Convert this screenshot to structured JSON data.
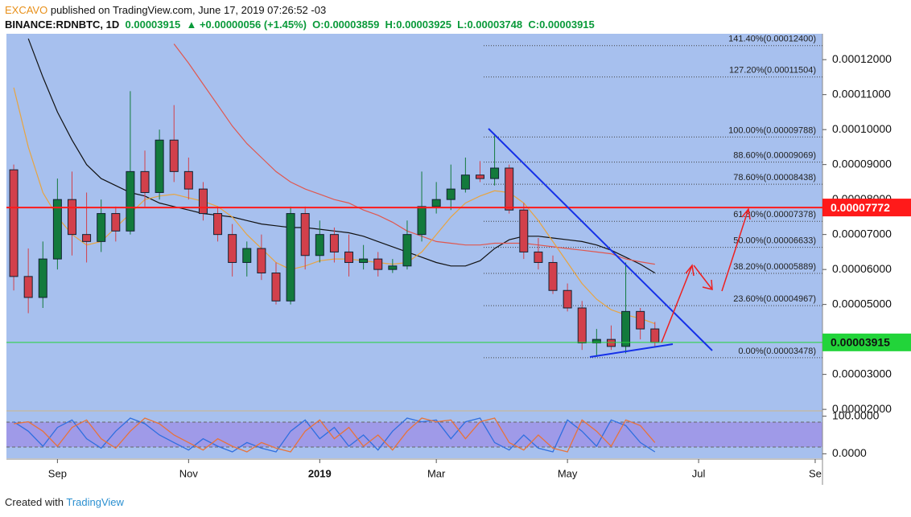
{
  "header": {
    "author": "EXCAVO",
    "published": "published on TradingView.com, June 17, 2019 07:26:52 -03",
    "symbol": "BINANCE:RDNBTC, 1D",
    "last": "0.00003915",
    "arrow": "▲",
    "change": "+0.00000056 (+1.45%)",
    "open": "O:0.00003859",
    "high": "H:0.00003925",
    "low": "L:0.00003748",
    "close": "C:0.00003915"
  },
  "footer": {
    "created": "Created with",
    "brand": "TradingView"
  },
  "chart_data": [
    {
      "type": "candlestick",
      "categories": [
        null,
        null,
        null,
        "Sep",
        null,
        null,
        null,
        null,
        null,
        null,
        null,
        null,
        "Nov",
        null,
        null,
        null,
        null,
        null,
        null,
        null,
        null,
        "2019",
        null,
        null,
        null,
        null,
        null,
        null,
        null,
        "Mar",
        null,
        null,
        null,
        null,
        null,
        null,
        null,
        null,
        "May",
        null,
        null,
        null,
        null,
        null,
        null,
        null,
        null,
        "Jul",
        null,
        null,
        null,
        null,
        null,
        null,
        null,
        "Se"
      ],
      "open": [
        8.85e-05,
        5.8e-05,
        5.2e-05,
        6.3e-05,
        8e-05,
        7e-05,
        6.8e-05,
        7.6e-05,
        7.1e-05,
        8.8e-05,
        8.2e-05,
        9.7e-05,
        8.8e-05,
        8.3e-05,
        7.6e-05,
        7e-05,
        6.2e-05,
        6.6e-05,
        5.9e-05,
        5.1e-05,
        7.6e-05,
        6.4e-05,
        7e-05,
        6.5e-05,
        6.2e-05,
        6.3e-05,
        6e-05,
        6.1e-05,
        7e-05,
        7.8e-05,
        8e-05,
        8.3e-05,
        8.7e-05,
        8.6e-05,
        8.9e-05,
        7.7e-05,
        6.5e-05,
        6.2e-05,
        5.4e-05,
        4.9e-05,
        3.9e-05,
        4e-05,
        3.8e-05,
        4.8e-05,
        4.3e-05,
        null,
        null,
        null,
        null,
        null,
        null,
        null,
        null,
        null,
        null,
        null
      ],
      "high": [
        9e-05,
        6.6e-05,
        6.8e-05,
        8.6e-05,
        8.8e-05,
        8.2e-05,
        8e-05,
        7.8e-05,
        0.000111,
        9.4e-05,
        0.0001,
        0.000107,
        9.2e-05,
        8.5e-05,
        7.8e-05,
        7.3e-05,
        6.8e-05,
        7e-05,
        6.2e-05,
        7.8e-05,
        7.8e-05,
        7.4e-05,
        7.2e-05,
        7e-05,
        6.7e-05,
        6.5e-05,
        6.3e-05,
        7.4e-05,
        8.8e-05,
        8.5e-05,
        9e-05,
        9.2e-05,
        9.1e-05,
        9.88e-05,
        9e-05,
        7.9e-05,
        6.9e-05,
        6.4e-05,
        5.6e-05,
        5.1e-05,
        4.3e-05,
        4.4e-05,
        6.2e-05,
        4.9e-05,
        4.5e-05,
        null,
        null,
        null,
        null,
        null,
        null,
        null,
        null,
        null,
        null,
        null
      ],
      "low": [
        5.4e-05,
        4.75e-05,
        4.9e-05,
        6e-05,
        6.4e-05,
        6.2e-05,
        6.5e-05,
        6.8e-05,
        7e-05,
        7.8e-05,
        8e-05,
        8.5e-05,
        8e-05,
        7.4e-05,
        6.8e-05,
        5.8e-05,
        5.8e-05,
        5.7e-05,
        5e-05,
        5e-05,
        6e-05,
        6.2e-05,
        6.2e-05,
        5.8e-05,
        6e-05,
        5.8e-05,
        5.9e-05,
        6e-05,
        6.8e-05,
        7.6e-05,
        7.7e-05,
        8.2e-05,
        8.5e-05,
        8.4e-05,
        7.6e-05,
        6.3e-05,
        6e-05,
        5.3e-05,
        4.8e-05,
        3.7e-05,
        3.5e-05,
        3.7e-05,
        3.6e-05,
        4e-05,
        3.8e-05,
        null,
        null,
        null,
        null,
        null,
        null,
        null,
        null,
        null,
        null,
        null
      ],
      "close": [
        5.8e-05,
        5.2e-05,
        6.3e-05,
        8e-05,
        7e-05,
        6.8e-05,
        7.6e-05,
        7.1e-05,
        8.8e-05,
        8.2e-05,
        9.7e-05,
        8.8e-05,
        8.3e-05,
        7.6e-05,
        7e-05,
        6.2e-05,
        6.6e-05,
        5.9e-05,
        5.1e-05,
        7.6e-05,
        6.4e-05,
        7e-05,
        6.5e-05,
        6.2e-05,
        6.3e-05,
        6e-05,
        6.1e-05,
        7e-05,
        7.8e-05,
        8e-05,
        8.3e-05,
        8.7e-05,
        8.6e-05,
        8.9e-05,
        7.7e-05,
        6.5e-05,
        6.2e-05,
        5.4e-05,
        4.9e-05,
        3.9e-05,
        4e-05,
        3.8e-05,
        4.8e-05,
        4.3e-05,
        3.915e-05,
        null,
        null,
        null,
        null,
        null,
        null,
        null,
        null,
        null,
        null,
        null
      ],
      "up_color": "#137a3c",
      "down_color": "#d2404b",
      "overlays": [
        {
          "color": "#111111",
          "values": [
            null,
            0.000126,
            0.000115,
            0.000105,
            9.7e-05,
            9e-05,
            8.6e-05,
            8.4e-05,
            8.2e-05,
            8.1e-05,
            7.9e-05,
            7.8e-05,
            7.7e-05,
            7.6e-05,
            7.55e-05,
            7.5e-05,
            7.4e-05,
            7.3e-05,
            7.25e-05,
            7.2e-05,
            7.2e-05,
            7.15e-05,
            7.1e-05,
            7.05e-05,
            6.95e-05,
            6.8e-05,
            6.65e-05,
            6.5e-05,
            6.35e-05,
            6.2e-05,
            6.1e-05,
            6.1e-05,
            6.25e-05,
            6.6e-05,
            6.85e-05,
            6.95e-05,
            6.95e-05,
            6.9e-05,
            6.85e-05,
            6.8e-05,
            6.7e-05,
            6.55e-05,
            6.35e-05,
            6.15e-05,
            5.9e-05,
            null,
            null,
            null,
            null,
            null,
            null,
            null,
            null,
            null,
            null,
            null
          ]
        },
        {
          "color": "#e0574f",
          "values": [
            null,
            null,
            null,
            null,
            null,
            null,
            null,
            null,
            null,
            null,
            null,
            0.0001245,
            0.000119,
            0.000113,
            0.000107,
            0.000101,
            9.6e-05,
            9.2e-05,
            8.8e-05,
            8.5e-05,
            8.3e-05,
            8.15e-05,
            8e-05,
            7.9e-05,
            7.7e-05,
            7.55e-05,
            7.35e-05,
            7.1e-05,
            6.95e-05,
            6.8e-05,
            6.75e-05,
            6.7e-05,
            6.7e-05,
            6.75e-05,
            6.75e-05,
            6.75e-05,
            6.7e-05,
            6.65e-05,
            6.6e-05,
            6.55e-05,
            6.5e-05,
            6.45e-05,
            6.3e-05,
            6.22e-05,
            6.15e-05,
            null,
            null,
            null,
            null,
            null,
            null,
            null,
            null,
            null,
            null,
            null
          ]
        },
        {
          "color": "#e8a440",
          "values": [
            0.000112,
            9.5e-05,
            8.2e-05,
            7.5e-05,
            7e-05,
            6.7e-05,
            6.8e-05,
            7.2e-05,
            7.6e-05,
            8e-05,
            8.1e-05,
            8.15e-05,
            8.05e-05,
            7.95e-05,
            7.8e-05,
            7.5e-05,
            7e-05,
            6.6e-05,
            6.2e-05,
            6e-05,
            6.1e-05,
            6.25e-05,
            6.3e-05,
            6.3e-05,
            6.25e-05,
            6.2e-05,
            6.15e-05,
            6.2e-05,
            6.5e-05,
            7e-05,
            7.5e-05,
            7.9e-05,
            8.1e-05,
            8.25e-05,
            8.2e-05,
            7.9e-05,
            7.4e-05,
            6.8e-05,
            6.2e-05,
            5.6e-05,
            5.15e-05,
            4.85e-05,
            4.7e-05,
            4.6e-05,
            4.45e-05,
            null,
            null,
            null,
            null,
            null,
            null,
            null,
            null,
            null,
            null,
            null
          ]
        }
      ],
      "levels": [
        {
          "value": 0.000124,
          "label": "141.40%(0.00012400)"
        },
        {
          "value": 0.00011504,
          "label": "127.20%(0.00011504)"
        },
        {
          "value": 9.788e-05,
          "label": "100.00%(0.00009788)"
        },
        {
          "value": 9.069e-05,
          "label": "88.60%(0.00009069)"
        },
        {
          "value": 8.438e-05,
          "label": "78.60%(0.00008438)"
        },
        {
          "value": 7.378e-05,
          "label": "61.80%(0.00007378)"
        },
        {
          "value": 6.633e-05,
          "label": "50.00%(0.00006633)"
        },
        {
          "value": 5.889e-05,
          "label": "38.20%(0.00005889)"
        },
        {
          "value": 4.967e-05,
          "label": "23.60%(0.00004967)"
        },
        {
          "value": 3.478e-05,
          "label": "0.00%(0.00003478)"
        }
      ],
      "price_lines": [
        {
          "value": 7.772e-05,
          "label": "0.00007772",
          "color": "#ff1a1a"
        },
        {
          "value": 3.915e-05,
          "label": "0.00003915",
          "color": "#22d43a"
        }
      ],
      "ylim": [
        1.98e-05,
        0.0001274
      ],
      "yticks": [
        {
          "value": 2e-05,
          "label": "0.00002000"
        },
        {
          "value": 3e-05,
          "label": "0.00003000"
        },
        {
          "value": 4e-05,
          "label": "0.00004000"
        },
        {
          "value": 5e-05,
          "label": "0.00005000"
        },
        {
          "value": 6e-05,
          "label": "0.00006000"
        },
        {
          "value": 7e-05,
          "label": "0.00007000"
        },
        {
          "value": 8e-05,
          "label": "0.00008000"
        },
        {
          "value": 9e-05,
          "label": "0.00009000"
        },
        {
          "value": 0.0001,
          "label": "0.00010000"
        },
        {
          "value": 0.00011,
          "label": "0.00011000"
        },
        {
          "value": 0.00012,
          "label": "0.00012000"
        }
      ]
    },
    {
      "type": "line",
      "series": [
        {
          "color": "#2f6fe0",
          "values": [
            85,
            60,
            20,
            70,
            90,
            40,
            15,
            60,
            95,
            80,
            50,
            30,
            10,
            40,
            20,
            5,
            30,
            15,
            5,
            60,
            90,
            40,
            70,
            20,
            50,
            10,
            60,
            95,
            85,
            90,
            40,
            85,
            95,
            30,
            10,
            50,
            15,
            5,
            90,
            60,
            20,
            90,
            75,
            30,
            5
          ]
        },
        {
          "color": "#e8733a",
          "values": [
            80,
            85,
            60,
            20,
            70,
            90,
            40,
            15,
            60,
            95,
            80,
            50,
            30,
            10,
            40,
            20,
            5,
            30,
            15,
            5,
            60,
            90,
            40,
            70,
            20,
            50,
            10,
            60,
            95,
            85,
            90,
            40,
            85,
            95,
            30,
            10,
            50,
            15,
            5,
            90,
            60,
            20,
            90,
            75,
            30
          ]
        }
      ],
      "ylim": [
        -12,
        112
      ],
      "yticks": [
        {
          "value": 100,
          "label": "100.0000"
        },
        {
          "value": 0,
          "label": "0.0000"
        }
      ]
    }
  ]
}
